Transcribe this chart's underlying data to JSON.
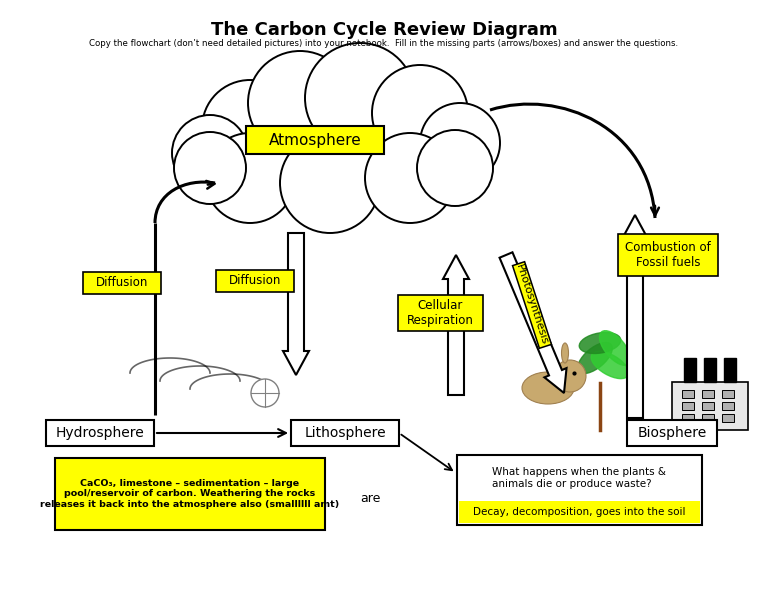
{
  "title": "The Carbon Cycle Review Diagram",
  "subtitle": "Copy the flowchart (don’t need detailed pictures) into your notebook.  Fill in the missing parts (arrows/boxes) and answer the questions.",
  "labels": {
    "atmosphere": "Atmosphere",
    "hydrosphere": "Hydrosphere",
    "lithosphere": "Lithosphere",
    "biosphere": "Biosphere",
    "diffusion1": "Diffusion",
    "diffusion2": "Diffusion",
    "cellular_respiration": "Cellular\nRespiration",
    "photosynthesis": "Photosynthesis",
    "combustion": "Combustion of\nFossil fuels",
    "lithosphere_note_top": "What happens when the plants &\nanimals die or produce waste?",
    "lithosphere_note_bot": "Decay, decomposition, goes into the soil",
    "hydrosphere_note": "CaCO₃, limestone – sedimentation – large\npool/reservoir of carbon. Weathering the rocks\nreleases it back into the atmosphere also (smallllll amt)",
    "are": "are"
  },
  "yellow": "#FFFF00",
  "white": "#FFFFFF",
  "black": "#000000",
  "bg": "#FFFFFF",
  "fig_w": 7.68,
  "fig_h": 5.93,
  "dpi": 100
}
